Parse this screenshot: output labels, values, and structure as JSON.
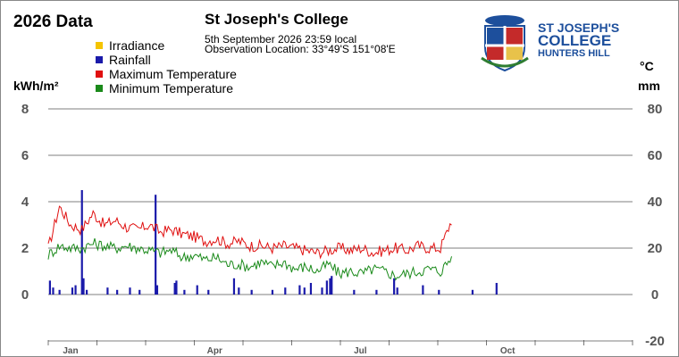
{
  "header": {
    "chart_title": "2026 Data",
    "site_name": "St Joseph's College",
    "timestamp": "5th September 2026  23:59 local",
    "location": "Observation Location:   33°49'S 151°08'E"
  },
  "logo": {
    "line1": "ST JOSEPH'S",
    "line2": "COLLEGE",
    "line3": "HUNTERS HILL",
    "color": "#1d4f9c"
  },
  "chart_data": {
    "type": "line",
    "title": "2026 Data",
    "left_axis": {
      "label": "kWh/m²",
      "ticks": [
        "8",
        "6",
        "4",
        "2",
        "0"
      ],
      "range": [
        0,
        8
      ]
    },
    "right_axis": {
      "label": "°C",
      "label2": "mm",
      "ticks": [
        "80",
        "60",
        "40",
        "20",
        "0",
        "-20"
      ],
      "range": [
        -20,
        80
      ]
    },
    "x_ticks": [
      "Jan",
      "Apr",
      "Jul",
      "Oct"
    ],
    "legend": [
      {
        "name": "Irradiance",
        "color": "#f5c400"
      },
      {
        "name": "Rainfall",
        "color": "#1a1aaa"
      },
      {
        "name": "Maximum Temperature",
        "color": "#e01010"
      },
      {
        "name": "Minimum Temperature",
        "color": "#1a8a1a"
      }
    ],
    "grid": true,
    "series": [
      {
        "name": "Maximum Temperature",
        "axis": "right",
        "color": "#e01010",
        "values_weekly": [
          20,
          38,
          30,
          28,
          35,
          30,
          32,
          29,
          28,
          30,
          27,
          28,
          26,
          25,
          23,
          24,
          22,
          23,
          21,
          21,
          20,
          21,
          20,
          19,
          18,
          19,
          20,
          19,
          20,
          18,
          19,
          20,
          19,
          21,
          20,
          20,
          32
        ]
      },
      {
        "name": "Minimum Temperature",
        "axis": "right",
        "color": "#1a8a1a",
        "values_weekly": [
          17,
          21,
          20,
          20,
          22,
          21,
          20,
          21,
          20,
          19,
          18,
          19,
          16,
          17,
          15,
          16,
          13,
          13,
          12,
          14,
          12,
          14,
          11,
          12,
          10,
          13,
          9,
          10,
          9,
          11,
          10,
          8,
          9,
          10,
          11,
          10,
          16
        ]
      },
      {
        "name": "Rainfall",
        "axis": "right",
        "color": "#1a1aaa",
        "bars": [
          {
            "day": 1,
            "value": 6
          },
          {
            "day": 3,
            "value": 3
          },
          {
            "day": 7,
            "value": 2
          },
          {
            "day": 15,
            "value": 3
          },
          {
            "day": 17,
            "value": 4
          },
          {
            "day": 21,
            "value": 45
          },
          {
            "day": 22,
            "value": 7
          },
          {
            "day": 24,
            "value": 2
          },
          {
            "day": 37,
            "value": 3
          },
          {
            "day": 43,
            "value": 2
          },
          {
            "day": 51,
            "value": 3
          },
          {
            "day": 57,
            "value": 2
          },
          {
            "day": 67,
            "value": 43
          },
          {
            "day": 68,
            "value": 4
          },
          {
            "day": 79,
            "value": 5
          },
          {
            "day": 80,
            "value": 6
          },
          {
            "day": 85,
            "value": 2
          },
          {
            "day": 93,
            "value": 4
          },
          {
            "day": 100,
            "value": 2
          },
          {
            "day": 116,
            "value": 7
          },
          {
            "day": 119,
            "value": 3
          },
          {
            "day": 127,
            "value": 2
          },
          {
            "day": 140,
            "value": 2
          },
          {
            "day": 148,
            "value": 3
          },
          {
            "day": 157,
            "value": 4
          },
          {
            "day": 160,
            "value": 3
          },
          {
            "day": 164,
            "value": 5
          },
          {
            "day": 171,
            "value": 3
          },
          {
            "day": 174,
            "value": 6
          },
          {
            "day": 176,
            "value": 7
          },
          {
            "day": 177,
            "value": 8
          },
          {
            "day": 191,
            "value": 2
          },
          {
            "day": 205,
            "value": 2
          },
          {
            "day": 216,
            "value": 7
          },
          {
            "day": 218,
            "value": 3
          },
          {
            "day": 234,
            "value": 4
          },
          {
            "day": 244,
            "value": 2
          },
          {
            "day": 265,
            "value": 2
          },
          {
            "day": 280,
            "value": 5
          }
        ]
      }
    ]
  }
}
